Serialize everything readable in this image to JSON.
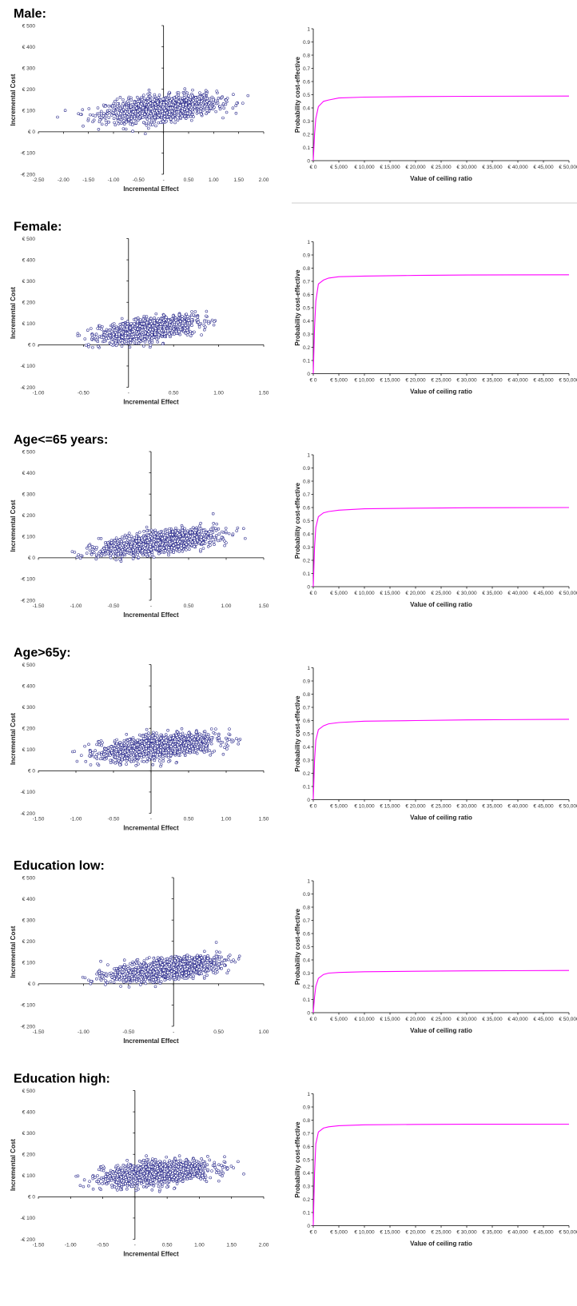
{
  "scatter_config": {
    "ylabel": "Incremental Cost",
    "xlabel": "Incremental Effect",
    "y_ticks": [
      500,
      400,
      300,
      200,
      100,
      0,
      -100,
      -200
    ],
    "y_tick_labels": [
      "€ 500",
      "€ 400",
      "€ 300",
      "€ 200",
      "€ 100",
      "€ 0",
      "-€ 100",
      "-€ 200"
    ],
    "ylim": [
      -200,
      500
    ],
    "marker_color": "#2b2b8c"
  },
  "ceac_config": {
    "ylabel": "Probability cost-effective",
    "xlabel": "Value of ceiling ratio",
    "y_ticks": [
      0,
      0.1,
      0.2,
      0.3,
      0.4,
      0.5,
      0.6,
      0.7,
      0.8,
      0.9,
      1
    ],
    "y_tick_labels": [
      "0",
      "0.1",
      "0.2",
      "0.3",
      "0.4",
      "0.5",
      "0.6",
      "0.7",
      "0.8",
      "0.9",
      "1"
    ],
    "x_ticks": [
      0,
      5000,
      10000,
      15000,
      20000,
      25000,
      30000,
      35000,
      40000,
      45000,
      50000
    ],
    "x_tick_labels": [
      "€ 0",
      "€ 5,000",
      "€ 10,000",
      "€ 15,000",
      "€ 20,000",
      "€ 25,000",
      "€ 30,000",
      "€ 35,000",
      "€ 40,000",
      "€ 45,000",
      "€ 50,000"
    ],
    "xlim": [
      0,
      50000
    ],
    "ylim": [
      0,
      1
    ],
    "line_color": "#ff00ff"
  },
  "panels": [
    {
      "title": "Male:",
      "scatter": {
        "xlim": [
          -2.5,
          2.0
        ],
        "x_ticks": [
          -2.5,
          -2.0,
          -1.5,
          -1.0,
          -0.5,
          0,
          0.5,
          1.0,
          1.5,
          2.0
        ],
        "x_tick_labels": [
          "-2.50",
          "-2.00",
          "-1.50",
          "-1.00",
          "-0.50",
          "-",
          "0.50",
          "1.00",
          "1.50",
          "2.00"
        ],
        "cloud": {
          "mean_x": -0.05,
          "sd_x": 0.55,
          "mean_y": 110,
          "slope": 22,
          "sd_y": 28,
          "n": 1400,
          "x_range": [
            -2.2,
            1.75
          ]
        }
      },
      "ceac": {
        "plateau": 0.49,
        "points": [
          [
            0,
            0
          ],
          [
            250,
            0.2
          ],
          [
            500,
            0.32
          ],
          [
            1000,
            0.41
          ],
          [
            2000,
            0.45
          ],
          [
            3000,
            0.46
          ],
          [
            5000,
            0.475
          ],
          [
            10000,
            0.482
          ],
          [
            20000,
            0.486
          ],
          [
            30000,
            0.488
          ],
          [
            50000,
            0.49
          ]
        ]
      }
    },
    {
      "title": "Female:",
      "scatter": {
        "xlim": [
          -1.0,
          1.5
        ],
        "x_ticks": [
          -1.0,
          -0.5,
          0,
          0.5,
          1.0,
          1.5
        ],
        "x_tick_labels": [
          "-1.00",
          "-0.50",
          "-",
          "0.50",
          "1.00",
          "1.50"
        ],
        "cloud": {
          "mean_x": 0.22,
          "sd_x": 0.26,
          "mean_y": 72,
          "slope": 65,
          "sd_y": 25,
          "n": 1300,
          "x_range": [
            -0.6,
            1.05
          ]
        }
      },
      "ceac": {
        "plateau": 0.75,
        "points": [
          [
            0,
            0
          ],
          [
            250,
            0.35
          ],
          [
            500,
            0.55
          ],
          [
            1000,
            0.68
          ],
          [
            2000,
            0.71
          ],
          [
            3000,
            0.725
          ],
          [
            5000,
            0.735
          ],
          [
            10000,
            0.74
          ],
          [
            20000,
            0.745
          ],
          [
            30000,
            0.748
          ],
          [
            50000,
            0.75
          ]
        ]
      }
    },
    {
      "title": "Age<=65 years:",
      "scatter": {
        "xlim": [
          -1.5,
          1.5
        ],
        "x_ticks": [
          -1.5,
          -1.0,
          -0.5,
          0,
          0.5,
          1.0,
          1.5
        ],
        "x_tick_labels": [
          "-1.50",
          "-1.00",
          "-0.50",
          "-",
          "0.50",
          "1.00",
          "1.50"
        ],
        "cloud": {
          "mean_x": 0.1,
          "sd_x": 0.38,
          "mean_y": 72,
          "slope": 45,
          "sd_y": 24,
          "n": 1400,
          "x_range": [
            -1.05,
            1.3
          ]
        }
      },
      "ceac": {
        "plateau": 0.6,
        "points": [
          [
            0,
            0
          ],
          [
            250,
            0.3
          ],
          [
            500,
            0.45
          ],
          [
            1000,
            0.53
          ],
          [
            2000,
            0.56
          ],
          [
            3000,
            0.57
          ],
          [
            5000,
            0.58
          ],
          [
            10000,
            0.59
          ],
          [
            20000,
            0.595
          ],
          [
            30000,
            0.598
          ],
          [
            50000,
            0.6
          ]
        ]
      }
    },
    {
      "title": "Age>65y:",
      "scatter": {
        "xlim": [
          -1.5,
          1.5
        ],
        "x_ticks": [
          -1.5,
          -1.0,
          -0.5,
          0,
          0.5,
          1.0,
          1.5
        ],
        "x_tick_labels": [
          "-1.50",
          "-1.00",
          "-0.50",
          "-",
          "0.50",
          "1.00",
          "1.50"
        ],
        "cloud": {
          "mean_x": 0.1,
          "sd_x": 0.38,
          "mean_y": 112,
          "slope": 40,
          "sd_y": 27,
          "n": 1400,
          "x_range": [
            -1.05,
            1.3
          ]
        }
      },
      "ceac": {
        "plateau": 0.61,
        "points": [
          [
            0,
            0
          ],
          [
            250,
            0.3
          ],
          [
            500,
            0.45
          ],
          [
            1000,
            0.53
          ],
          [
            2000,
            0.56
          ],
          [
            3000,
            0.575
          ],
          [
            5000,
            0.585
          ],
          [
            10000,
            0.595
          ],
          [
            20000,
            0.6
          ],
          [
            30000,
            0.605
          ],
          [
            50000,
            0.61
          ]
        ]
      }
    },
    {
      "title": "Education low:",
      "scatter": {
        "xlim": [
          -1.5,
          1.0
        ],
        "x_ticks": [
          -1.5,
          -1.0,
          -0.5,
          0,
          0.5,
          1.0
        ],
        "x_tick_labels": [
          "-1.50",
          "-1.00",
          "-0.50",
          "-",
          "0.50",
          "1.00"
        ],
        "cloud": {
          "mean_x": -0.1,
          "sd_x": 0.3,
          "mean_y": 68,
          "slope": 50,
          "sd_y": 23,
          "n": 1400,
          "x_range": [
            -1.1,
            0.75
          ]
        }
      },
      "ceac": {
        "plateau": 0.32,
        "points": [
          [
            0,
            0
          ],
          [
            250,
            0.12
          ],
          [
            500,
            0.2
          ],
          [
            1000,
            0.26
          ],
          [
            2000,
            0.29
          ],
          [
            3000,
            0.3
          ],
          [
            5000,
            0.305
          ],
          [
            10000,
            0.31
          ],
          [
            20000,
            0.314
          ],
          [
            30000,
            0.317
          ],
          [
            50000,
            0.32
          ]
        ]
      }
    },
    {
      "title": "Education high:",
      "scatter": {
        "xlim": [
          -1.5,
          2.0
        ],
        "x_ticks": [
          -1.5,
          -1.0,
          -0.5,
          0,
          0.5,
          1.0,
          1.5,
          2.0
        ],
        "x_tick_labels": [
          "-1.50",
          "-1.00",
          "-0.50",
          "-",
          "0.50",
          "1.00",
          "1.50",
          "2.00"
        ],
        "cloud": {
          "mean_x": 0.35,
          "sd_x": 0.42,
          "mean_y": 112,
          "slope": 30,
          "sd_y": 26,
          "n": 1400,
          "x_range": [
            -1.1,
            1.7
          ]
        }
      },
      "ceac": {
        "plateau": 0.77,
        "points": [
          [
            0,
            0
          ],
          [
            250,
            0.4
          ],
          [
            500,
            0.62
          ],
          [
            1000,
            0.71
          ],
          [
            2000,
            0.74
          ],
          [
            3000,
            0.75
          ],
          [
            5000,
            0.758
          ],
          [
            10000,
            0.765
          ],
          [
            20000,
            0.768
          ],
          [
            30000,
            0.769
          ],
          [
            50000,
            0.77
          ]
        ]
      }
    }
  ]
}
